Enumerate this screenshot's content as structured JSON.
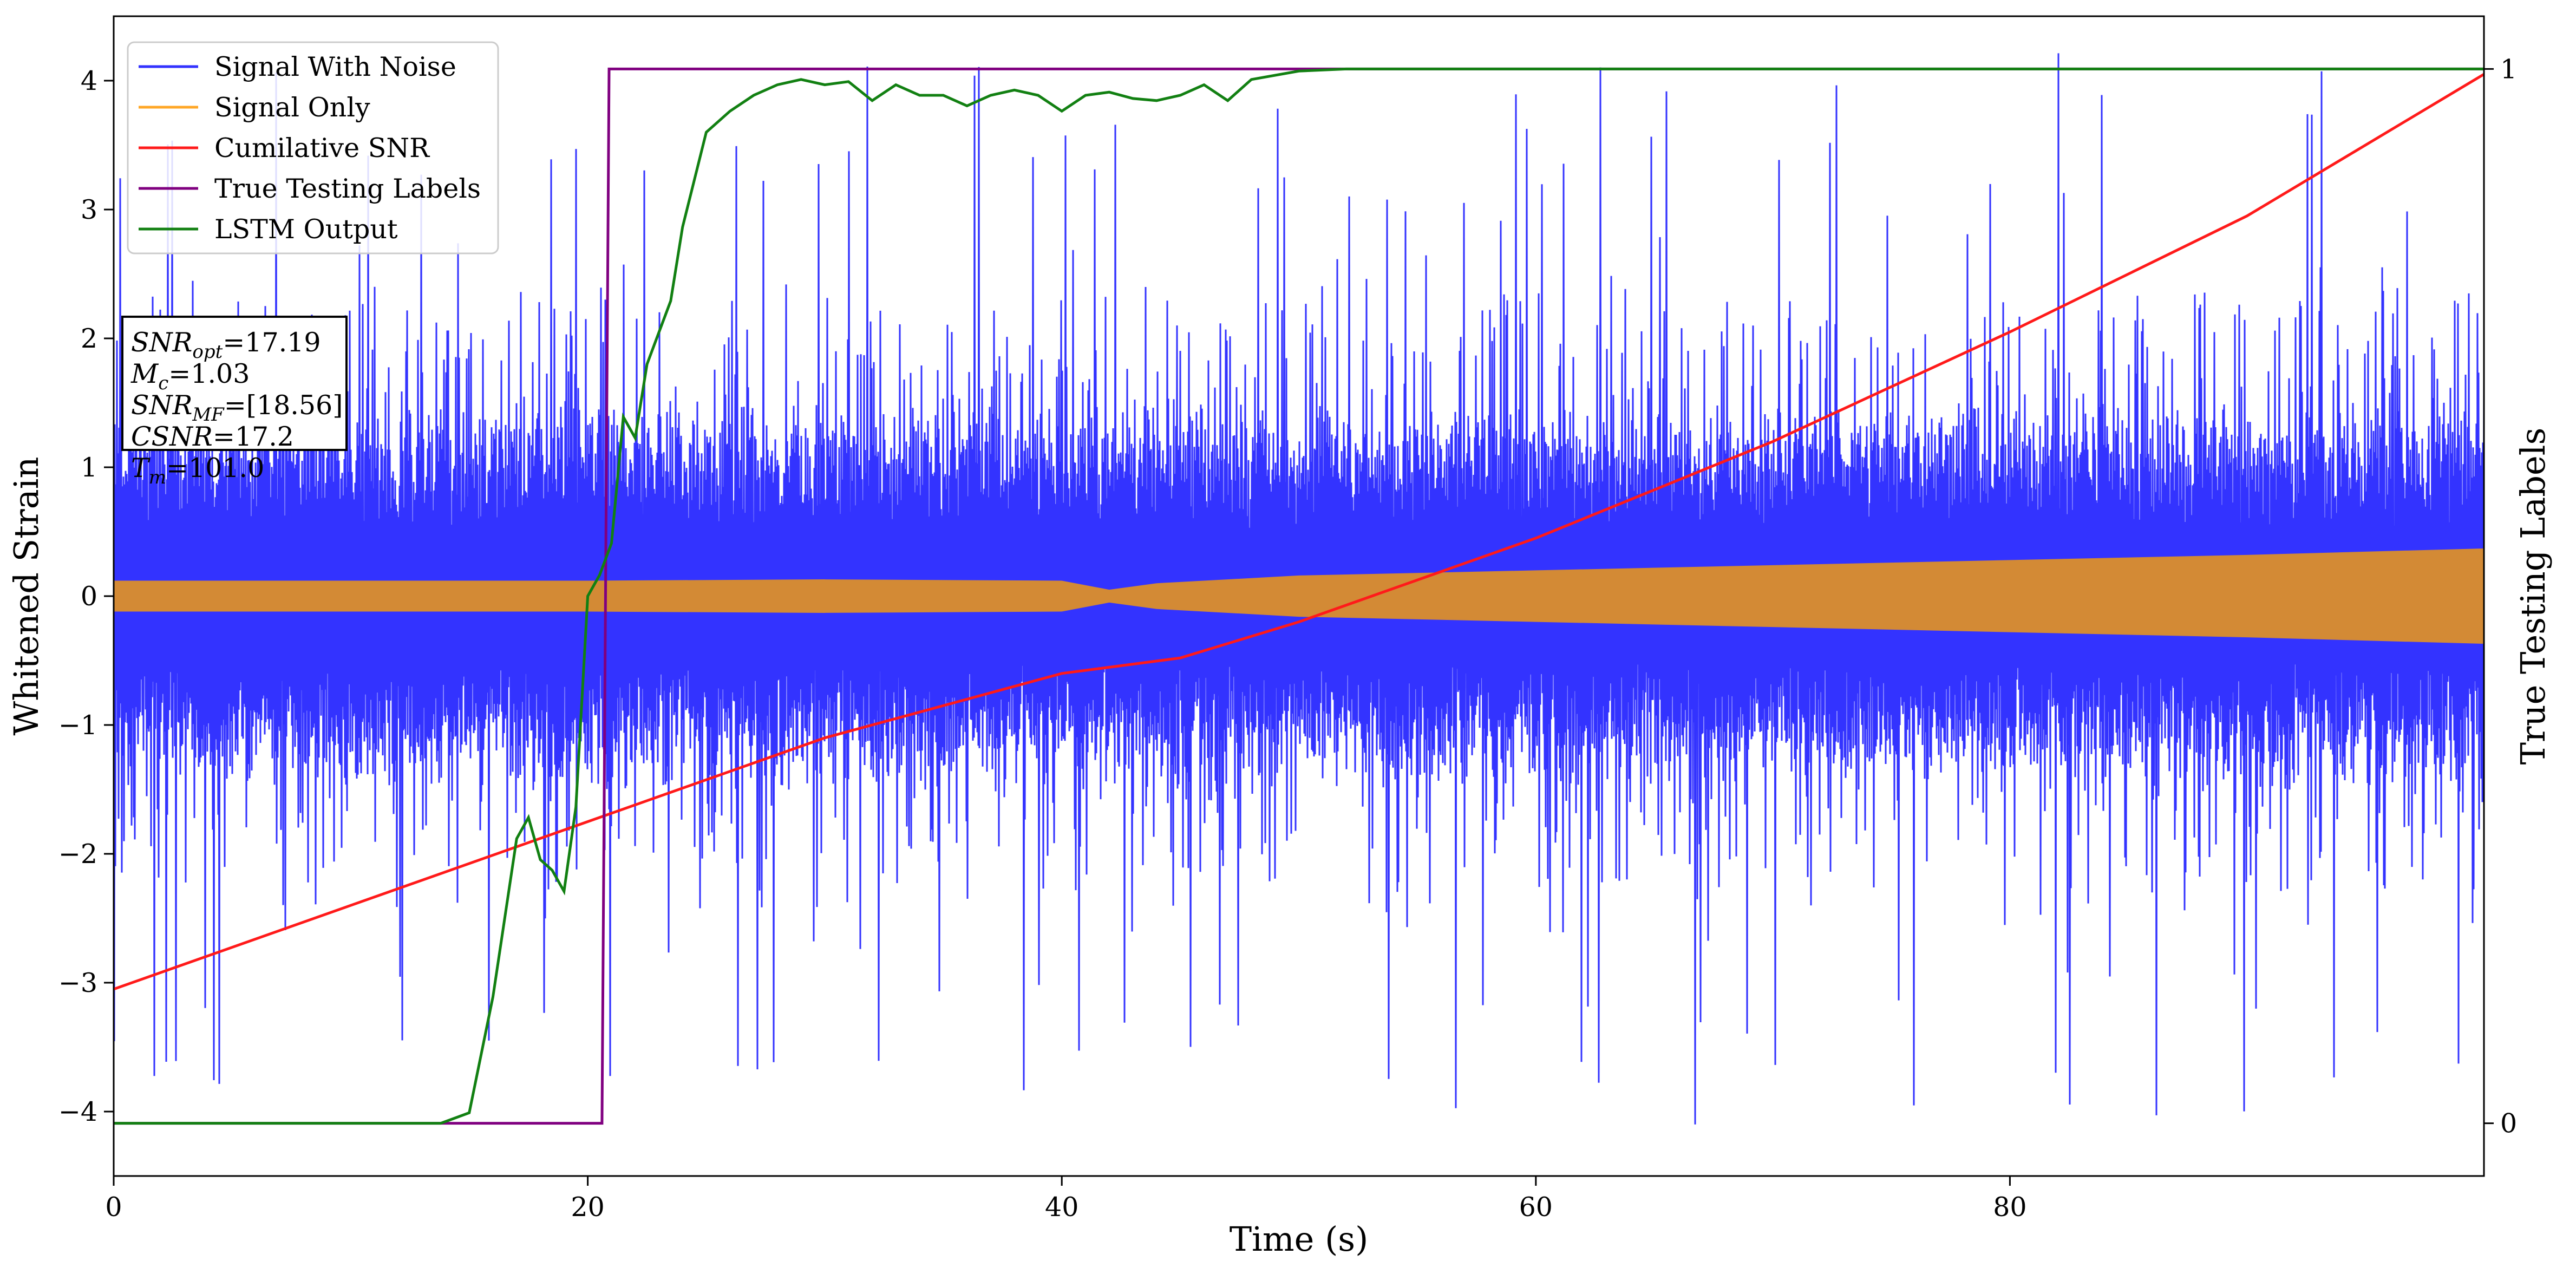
{
  "chart_data": {
    "type": "line",
    "xlabel": "Time (s)",
    "ylabel": "Whitened Strain",
    "y2label": "True Testing Labels",
    "xlim": [
      0,
      100
    ],
    "ylim": [
      -4.5,
      4.5
    ],
    "y2lim": [
      -0.05,
      1.05
    ],
    "x_ticks": [
      "0",
      "20",
      "40",
      "60",
      "80"
    ],
    "y_ticks": [
      "−4",
      "−3",
      "−2",
      "−1",
      "0",
      "1",
      "2",
      "3",
      "4"
    ],
    "y2_ticks": [
      "0",
      "1"
    ],
    "legend_position": "upper-left",
    "colors": {
      "noise": "#3333ff",
      "signal": "#ffa726",
      "signal_blend": "#d38a35",
      "csnr": "#ff1a1a",
      "labels": "#800080",
      "lstm": "#128012"
    },
    "series": [
      {
        "name": "Signal With Noise",
        "kind": "dense-noise",
        "description_values": {
          "core_half_width": 1.2,
          "typical_peak": 2.3,
          "max_peak": 4.1
        }
      },
      {
        "name": "Signal Only",
        "kind": "envelope",
        "x": [
          0,
          10,
          20,
          30,
          40,
          42,
          44,
          50,
          60,
          70,
          80,
          90,
          100
        ],
        "upper": [
          0.12,
          0.12,
          0.12,
          0.13,
          0.12,
          0.05,
          0.1,
          0.16,
          0.2,
          0.24,
          0.28,
          0.32,
          0.37
        ],
        "lower": [
          -0.12,
          -0.12,
          -0.12,
          -0.13,
          -0.12,
          -0.05,
          -0.1,
          -0.16,
          -0.2,
          -0.24,
          -0.28,
          -0.32,
          -0.37
        ]
      },
      {
        "name": "Cumilative SNR",
        "axis": "left",
        "x": [
          0,
          10,
          20,
          30,
          40,
          45,
          50,
          60,
          70,
          80,
          90,
          100
        ],
        "y": [
          -3.05,
          -2.4,
          -1.75,
          -1.1,
          -0.6,
          -0.48,
          -0.2,
          0.45,
          1.2,
          2.05,
          2.95,
          4.05
        ]
      },
      {
        "name": "True Testing Labels",
        "axis": "right",
        "x": [
          0,
          20.6,
          20.9,
          100
        ],
        "y": [
          0,
          0,
          1,
          1
        ]
      },
      {
        "name": "LSTM Output",
        "axis": "right",
        "x": [
          0,
          13.8,
          15,
          16,
          17,
          17.5,
          18,
          18.5,
          19,
          19.5,
          20,
          20.5,
          21,
          21.5,
          22,
          22.5,
          23,
          23.5,
          24,
          25,
          26,
          27,
          28,
          29,
          30,
          31,
          32,
          33,
          34,
          35,
          36,
          37,
          38,
          39,
          40,
          41,
          42,
          43,
          44,
          45,
          46,
          47,
          48,
          50,
          52,
          54,
          100
        ],
        "y": [
          0,
          0,
          0.01,
          0.12,
          0.27,
          0.29,
          0.25,
          0.24,
          0.22,
          0.3,
          0.5,
          0.52,
          0.55,
          0.67,
          0.65,
          0.72,
          0.75,
          0.78,
          0.85,
          0.94,
          0.96,
          0.975,
          0.985,
          0.99,
          0.985,
          0.988,
          0.97,
          0.985,
          0.975,
          0.975,
          0.965,
          0.975,
          0.98,
          0.975,
          0.96,
          0.975,
          0.978,
          0.972,
          0.97,
          0.975,
          0.985,
          0.97,
          0.99,
          0.998,
          1,
          1,
          1
        ]
      }
    ]
  },
  "legend": {
    "items": [
      {
        "label": "Signal With Noise",
        "color": "#3333ff"
      },
      {
        "label": "Signal Only",
        "color": "#ffa726"
      },
      {
        "label": "Cumilative SNR",
        "color": "#ff1a1a"
      },
      {
        "label": "True Testing Labels",
        "color": "#800080"
      },
      {
        "label": "LSTM Output",
        "color": "#128012"
      }
    ]
  },
  "info_box": {
    "snr_opt": "=17.19",
    "mc": "=1.03",
    "snr_mf": "=[18.56]",
    "csnr": "=17.2",
    "tm": "=101.0"
  }
}
